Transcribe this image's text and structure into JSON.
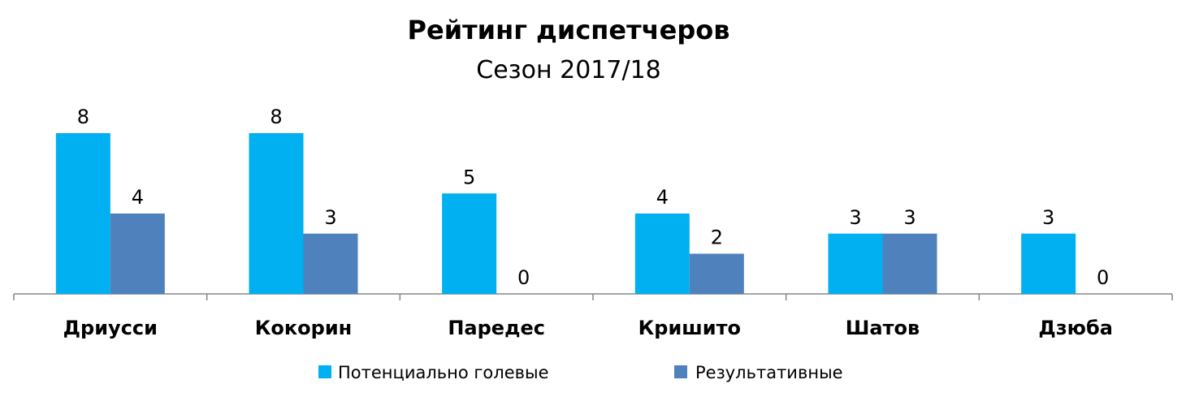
{
  "chart_data": {
    "type": "bar",
    "title": "Рейтинг диспетчеров",
    "subtitle": "Сезон 2017/18",
    "categories": [
      "Дриусси",
      "Кокорин",
      "Паредес",
      "Кришито",
      "Шатов",
      "Дзюба"
    ],
    "series": [
      {
        "name": "Потенциально голевые",
        "values": [
          8,
          8,
          5,
          4,
          3,
          3
        ],
        "color": "#00B0F0"
      },
      {
        "name": "Результативные",
        "values": [
          4,
          3,
          0,
          2,
          3,
          0
        ],
        "color": "#4F81BD"
      }
    ],
    "ylim": [
      0,
      8
    ],
    "grid": false,
    "legend": "bottom",
    "data_labels": true
  }
}
